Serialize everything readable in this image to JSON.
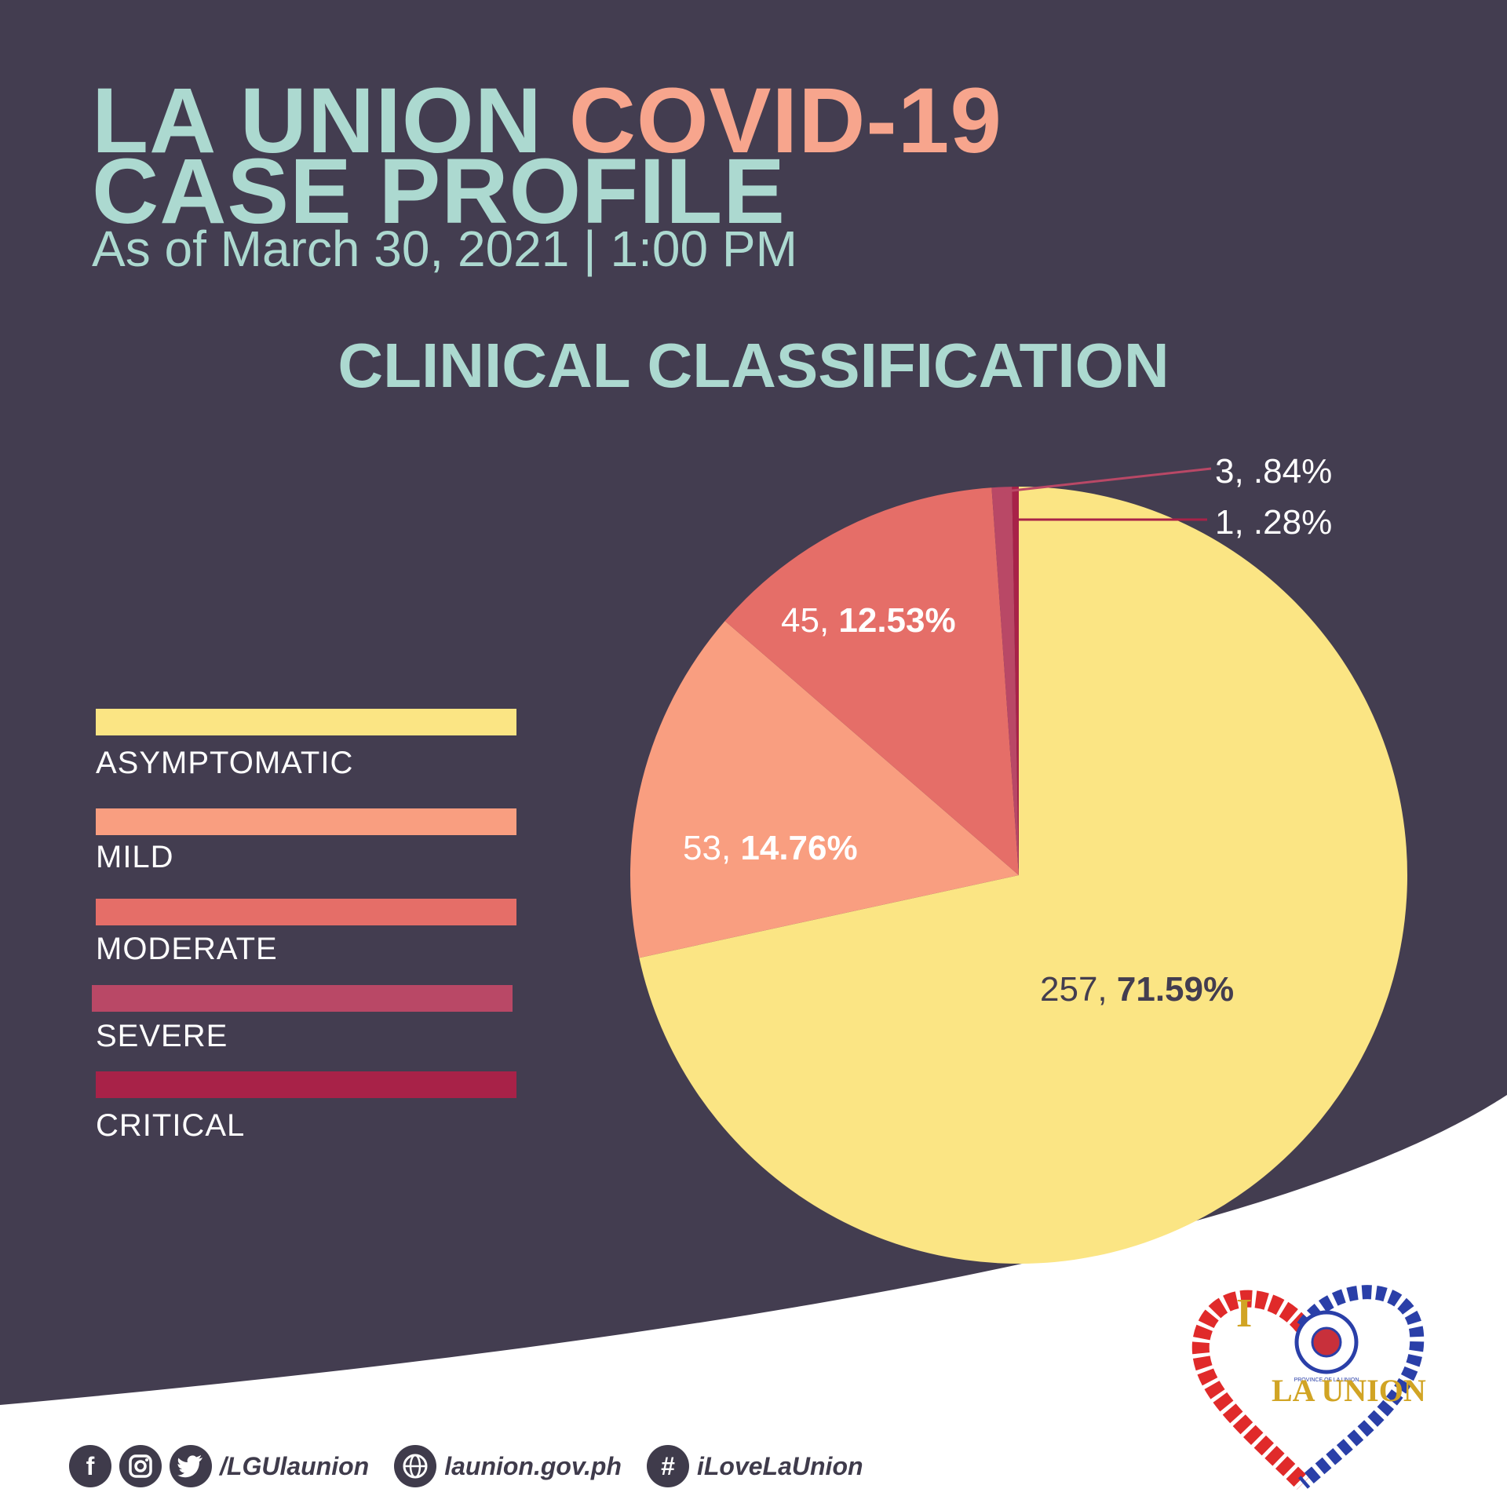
{
  "header": {
    "title_part1": "LA UNION",
    "title_part2": "COVID-19",
    "title_line2": "CASE PROFILE",
    "subtitle": "As of March 30, 2021 | 1:00 PM"
  },
  "section_title": "CLINICAL CLASSIFICATION",
  "colors": {
    "background": "#433d50",
    "title": "#acd9d0",
    "title_accent": "#f7a58d",
    "asymptomatic": "#fbe584",
    "mild": "#f99e80",
    "moderate": "#e56e68",
    "severe": "#b94866",
    "critical": "#a82248"
  },
  "chart_data": {
    "type": "pie",
    "title": "CLINICAL CLASSIFICATION",
    "legend_position": "left",
    "slices": [
      {
        "name": "ASYMPTOMATIC",
        "value": 257,
        "percent": 71.59,
        "value_text": "257, ",
        "percent_text": "71.59%",
        "color": "#fbe584"
      },
      {
        "name": "MILD",
        "value": 53,
        "percent": 14.76,
        "value_text": "53, ",
        "percent_text": "14.76%",
        "color": "#f99e80"
      },
      {
        "name": "MODERATE",
        "value": 45,
        "percent": 12.53,
        "value_text": "45, ",
        "percent_text": "12.53%",
        "color": "#e56e68"
      },
      {
        "name": "SEVERE",
        "value": 3,
        "percent": 0.84,
        "label": "3, .84%",
        "color": "#b94866"
      },
      {
        "name": "CRITICAL",
        "value": 1,
        "percent": 0.28,
        "label": "1, .28%",
        "color": "#a82248"
      }
    ]
  },
  "footer": {
    "social_handle": "/LGUlaunion",
    "website": "launion.gov.ph",
    "hashtag": "iLoveLaUnion",
    "icons": [
      "facebook-icon",
      "instagram-icon",
      "twitter-icon",
      "globe-icon",
      "hashtag-icon"
    ],
    "facebook_glyph": "f",
    "hashtag_glyph": "#"
  },
  "logo": {
    "text_top": "I",
    "text_bottom": "LA UNION",
    "seal_text": "PROVINCE OF LA UNION"
  }
}
